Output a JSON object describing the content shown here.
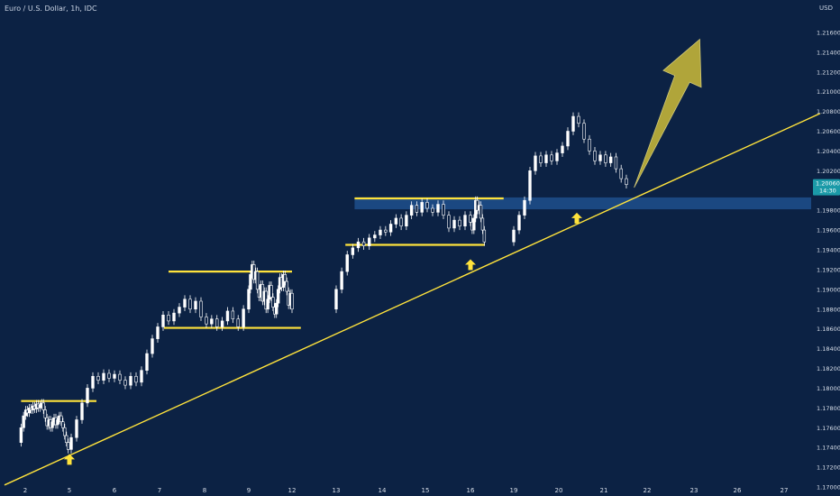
{
  "header": {
    "symbol_title": "Euro / U.S. Dollar, 1h, IDC",
    "currency": "USD"
  },
  "colors": {
    "background": "#0c2244",
    "candle": "#ffffff",
    "trendline": "#ffe33c",
    "levels": "#ffe33c",
    "zone": "#1f4f8c",
    "arrow_fill": "#b9ad3a",
    "badge": "#1b9aa8"
  },
  "chart_data": {
    "type": "candlestick",
    "title": "Euro / U.S. Dollar, 1h, IDC",
    "currency": "USD",
    "ylim": [
      1.17,
      1.218
    ],
    "y_ticks": [
      "1.21600",
      "1.21400",
      "1.21200",
      "1.21000",
      "1.20800",
      "1.20600",
      "1.20400",
      "1.20200",
      "1.20000",
      "1.19800",
      "1.19600",
      "1.19400",
      "1.19200",
      "1.19000",
      "1.18800",
      "1.18600",
      "1.18400",
      "1.18200",
      "1.18000",
      "1.17800",
      "1.17600",
      "1.17400",
      "1.17200",
      "1.17000"
    ],
    "x_ticks": [
      {
        "day": 2,
        "label": "2"
      },
      {
        "day": 5,
        "label": "5"
      },
      {
        "day": 6,
        "label": "6"
      },
      {
        "day": 7,
        "label": "7"
      },
      {
        "day": 8,
        "label": "8"
      },
      {
        "day": 9,
        "label": "9"
      },
      {
        "day": 12,
        "label": "12"
      },
      {
        "day": 13,
        "label": "13"
      },
      {
        "day": 14,
        "label": "14"
      },
      {
        "day": 15,
        "label": "15"
      },
      {
        "day": 16,
        "label": "16"
      },
      {
        "day": 19,
        "label": "19"
      },
      {
        "day": 20,
        "label": "20"
      },
      {
        "day": 21,
        "label": "21"
      },
      {
        "day": 22,
        "label": "22"
      },
      {
        "day": 23,
        "label": "23"
      },
      {
        "day": 26,
        "label": "26"
      },
      {
        "day": 27,
        "label": "27"
      }
    ],
    "last_price": {
      "value": 1.2006,
      "label": "1.20060",
      "countdown": "14:30"
    },
    "series": [
      {
        "day": 1.8,
        "o": 1.1745,
        "c": 1.176
      },
      {
        "day": 1.92,
        "o": 1.176,
        "c": 1.1772
      },
      {
        "day": 2.04,
        "o": 1.1772,
        "c": 1.1778
      },
      {
        "day": 2.16,
        "o": 1.1778,
        "c": 1.1775
      },
      {
        "day": 2.28,
        "o": 1.1775,
        "c": 1.178
      },
      {
        "day": 2.4,
        "o": 1.178,
        "c": 1.1778
      },
      {
        "day": 2.52,
        "o": 1.1778,
        "c": 1.1782
      },
      {
        "day": 2.64,
        "o": 1.1782,
        "c": 1.1779
      },
      {
        "day": 2.76,
        "o": 1.1779,
        "c": 1.1784
      },
      {
        "day": 2.88,
        "o": 1.1784,
        "c": 1.178
      },
      {
        "day": 3.0,
        "o": 1.178,
        "c": 1.1783
      },
      {
        "day": 3.12,
        "o": 1.1783,
        "c": 1.1785
      },
      {
        "day": 3.24,
        "o": 1.1785,
        "c": 1.1778
      },
      {
        "day": 3.36,
        "o": 1.1778,
        "c": 1.177
      },
      {
        "day": 3.48,
        "o": 1.177,
        "c": 1.1762
      },
      {
        "day": 3.6,
        "o": 1.1762,
        "c": 1.1768
      },
      {
        "day": 3.72,
        "o": 1.1768,
        "c": 1.176
      },
      {
        "day": 3.84,
        "o": 1.176,
        "c": 1.1766
      },
      {
        "day": 3.96,
        "o": 1.1766,
        "c": 1.177
      },
      {
        "day": 4.08,
        "o": 1.177,
        "c": 1.1763
      },
      {
        "day": 4.2,
        "o": 1.1763,
        "c": 1.1768
      },
      {
        "day": 4.32,
        "o": 1.1768,
        "c": 1.1772
      },
      {
        "day": 4.44,
        "o": 1.1772,
        "c": 1.1766
      },
      {
        "day": 4.56,
        "o": 1.1766,
        "c": 1.176
      },
      {
        "day": 4.68,
        "o": 1.176,
        "c": 1.1752
      },
      {
        "day": 4.8,
        "o": 1.1752,
        "c": 1.1745
      },
      {
        "day": 4.92,
        "o": 1.1745,
        "c": 1.1738
      },
      {
        "day": 5.04,
        "o": 1.1738,
        "c": 1.175
      },
      {
        "day": 5.16,
        "o": 1.175,
        "c": 1.1768
      },
      {
        "day": 5.28,
        "o": 1.1768,
        "c": 1.1785
      },
      {
        "day": 5.4,
        "o": 1.1785,
        "c": 1.18
      },
      {
        "day": 5.52,
        "o": 1.18,
        "c": 1.1812
      },
      {
        "day": 5.64,
        "o": 1.1812,
        "c": 1.1808
      },
      {
        "day": 5.76,
        "o": 1.1808,
        "c": 1.1815
      },
      {
        "day": 5.88,
        "o": 1.1815,
        "c": 1.181
      },
      {
        "day": 6.0,
        "o": 1.181,
        "c": 1.1814
      },
      {
        "day": 6.12,
        "o": 1.1814,
        "c": 1.1808
      },
      {
        "day": 6.24,
        "o": 1.1808,
        "c": 1.1803
      },
      {
        "day": 6.36,
        "o": 1.1803,
        "c": 1.1812
      },
      {
        "day": 6.48,
        "o": 1.1812,
        "c": 1.1806
      },
      {
        "day": 6.6,
        "o": 1.1806,
        "c": 1.1818
      },
      {
        "day": 6.72,
        "o": 1.1818,
        "c": 1.1835
      },
      {
        "day": 6.84,
        "o": 1.1835,
        "c": 1.185
      },
      {
        "day": 6.96,
        "o": 1.185,
        "c": 1.1862
      },
      {
        "day": 7.08,
        "o": 1.1862,
        "c": 1.1874
      },
      {
        "day": 7.2,
        "o": 1.1874,
        "c": 1.1868
      },
      {
        "day": 7.32,
        "o": 1.1868,
        "c": 1.1876
      },
      {
        "day": 7.44,
        "o": 1.1876,
        "c": 1.1882
      },
      {
        "day": 7.56,
        "o": 1.1882,
        "c": 1.189
      },
      {
        "day": 7.68,
        "o": 1.189,
        "c": 1.188
      },
      {
        "day": 7.8,
        "o": 1.188,
        "c": 1.1888
      },
      {
        "day": 7.92,
        "o": 1.1888,
        "c": 1.1872
      },
      {
        "day": 8.04,
        "o": 1.1872,
        "c": 1.1865
      },
      {
        "day": 8.16,
        "o": 1.1865,
        "c": 1.187
      },
      {
        "day": 8.28,
        "o": 1.187,
        "c": 1.1862
      },
      {
        "day": 8.4,
        "o": 1.1862,
        "c": 1.1868
      },
      {
        "day": 8.52,
        "o": 1.1868,
        "c": 1.1878
      },
      {
        "day": 8.64,
        "o": 1.1878,
        "c": 1.187
      },
      {
        "day": 8.76,
        "o": 1.187,
        "c": 1.1862
      },
      {
        "day": 8.88,
        "o": 1.1862,
        "c": 1.188
      },
      {
        "day": 9.0,
        "o": 1.188,
        "c": 1.19
      },
      {
        "day": 9.12,
        "o": 1.19,
        "c": 1.1915
      },
      {
        "day": 9.24,
        "o": 1.1915,
        "c": 1.1925
      },
      {
        "day": 9.36,
        "o": 1.1925,
        "c": 1.191
      },
      {
        "day": 9.48,
        "o": 1.191,
        "c": 1.1918
      },
      {
        "day": 9.6,
        "o": 1.1918,
        "c": 1.19
      },
      {
        "day": 9.72,
        "o": 1.19,
        "c": 1.1892
      },
      {
        "day": 9.84,
        "o": 1.1892,
        "c": 1.1905
      },
      {
        "day": 9.96,
        "o": 1.1905,
        "c": 1.1888
      },
      {
        "day": 10.08,
        "o": 1.1888,
        "c": 1.1898
      },
      {
        "day": 10.2,
        "o": 1.1898,
        "c": 1.188
      },
      {
        "day": 10.32,
        "o": 1.188,
        "c": 1.189
      },
      {
        "day": 10.44,
        "o": 1.189,
        "c": 1.1904
      },
      {
        "day": 10.56,
        "o": 1.1904,
        "c": 1.1892
      },
      {
        "day": 10.68,
        "o": 1.1892,
        "c": 1.1882
      },
      {
        "day": 10.8,
        "o": 1.1882,
        "c": 1.1875
      },
      {
        "day": 10.92,
        "o": 1.1875,
        "c": 1.1886
      },
      {
        "day": 11.04,
        "o": 1.1886,
        "c": 1.19
      },
      {
        "day": 11.16,
        "o": 1.19,
        "c": 1.1912
      },
      {
        "day": 11.28,
        "o": 1.1912,
        "c": 1.1902
      },
      {
        "day": 11.4,
        "o": 1.1902,
        "c": 1.1915
      },
      {
        "day": 11.52,
        "o": 1.1915,
        "c": 1.1908
      },
      {
        "day": 11.64,
        "o": 1.1908,
        "c": 1.1898
      },
      {
        "day": 11.76,
        "o": 1.1898,
        "c": 1.1884
      },
      {
        "day": 11.88,
        "o": 1.1884,
        "c": 1.1896
      },
      {
        "day": 12.0,
        "o": 1.1896,
        "c": 1.188
      },
      {
        "day": 13.0,
        "o": 1.188,
        "c": 1.19
      },
      {
        "day": 13.12,
        "o": 1.19,
        "c": 1.1918
      },
      {
        "day": 13.24,
        "o": 1.1918,
        "c": 1.1935
      },
      {
        "day": 13.36,
        "o": 1.1935,
        "c": 1.1942
      },
      {
        "day": 13.48,
        "o": 1.1942,
        "c": 1.1948
      },
      {
        "day": 13.6,
        "o": 1.1948,
        "c": 1.1944
      },
      {
        "day": 13.72,
        "o": 1.1944,
        "c": 1.1952
      },
      {
        "day": 13.84,
        "o": 1.1952,
        "c": 1.1955
      },
      {
        "day": 13.96,
        "o": 1.1955,
        "c": 1.196
      },
      {
        "day": 14.08,
        "o": 1.196,
        "c": 1.1958
      },
      {
        "day": 14.2,
        "o": 1.1958,
        "c": 1.1966
      },
      {
        "day": 14.32,
        "o": 1.1966,
        "c": 1.1972
      },
      {
        "day": 14.44,
        "o": 1.1972,
        "c": 1.1964
      },
      {
        "day": 14.56,
        "o": 1.1964,
        "c": 1.1975
      },
      {
        "day": 14.68,
        "o": 1.1975,
        "c": 1.1985
      },
      {
        "day": 14.8,
        "o": 1.1985,
        "c": 1.1978
      },
      {
        "day": 14.92,
        "o": 1.1978,
        "c": 1.1988
      },
      {
        "day": 15.04,
        "o": 1.1988,
        "c": 1.1982
      },
      {
        "day": 15.16,
        "o": 1.1982,
        "c": 1.1978
      },
      {
        "day": 15.28,
        "o": 1.1978,
        "c": 1.1986
      },
      {
        "day": 15.4,
        "o": 1.1986,
        "c": 1.1975
      },
      {
        "day": 15.52,
        "o": 1.1975,
        "c": 1.1962
      },
      {
        "day": 15.64,
        "o": 1.1962,
        "c": 1.197
      },
      {
        "day": 15.76,
        "o": 1.197,
        "c": 1.1964
      },
      {
        "day": 15.88,
        "o": 1.1964,
        "c": 1.1975
      },
      {
        "day": 16.0,
        "o": 1.1975,
        "c": 1.1968
      },
      {
        "day": 16.12,
        "o": 1.1968,
        "c": 1.196
      },
      {
        "day": 16.24,
        "o": 1.196,
        "c": 1.1972
      },
      {
        "day": 16.36,
        "o": 1.1972,
        "c": 1.199
      },
      {
        "day": 16.48,
        "o": 1.199,
        "c": 1.198
      },
      {
        "day": 16.6,
        "o": 1.198,
        "c": 1.1985
      },
      {
        "day": 16.72,
        "o": 1.1985,
        "c": 1.1972
      },
      {
        "day": 16.84,
        "o": 1.1972,
        "c": 1.196
      },
      {
        "day": 16.96,
        "o": 1.196,
        "c": 1.1948
      },
      {
        "day": 19.0,
        "o": 1.1948,
        "c": 1.196
      },
      {
        "day": 19.12,
        "o": 1.196,
        "c": 1.1975
      },
      {
        "day": 19.24,
        "o": 1.1975,
        "c": 1.199
      },
      {
        "day": 19.36,
        "o": 1.199,
        "c": 1.202
      },
      {
        "day": 19.48,
        "o": 1.202,
        "c": 1.2035
      },
      {
        "day": 19.6,
        "o": 1.2035,
        "c": 1.2028
      },
      {
        "day": 19.72,
        "o": 1.2028,
        "c": 1.2036
      },
      {
        "day": 19.84,
        "o": 1.2036,
        "c": 1.203
      },
      {
        "day": 19.96,
        "o": 1.203,
        "c": 1.2038
      },
      {
        "day": 20.08,
        "o": 1.2038,
        "c": 1.2045
      },
      {
        "day": 20.2,
        "o": 1.2045,
        "c": 1.206
      },
      {
        "day": 20.32,
        "o": 1.206,
        "c": 1.2075
      },
      {
        "day": 20.44,
        "o": 1.2075,
        "c": 1.2068
      },
      {
        "day": 20.56,
        "o": 1.2068,
        "c": 1.2052
      },
      {
        "day": 20.68,
        "o": 1.2052,
        "c": 1.204
      },
      {
        "day": 20.8,
        "o": 1.204,
        "c": 1.203
      },
      {
        "day": 20.92,
        "o": 1.203,
        "c": 1.2036
      },
      {
        "day": 21.04,
        "o": 1.2036,
        "c": 1.2028
      },
      {
        "day": 21.16,
        "o": 1.2028,
        "c": 1.2034
      },
      {
        "day": 21.28,
        "o": 1.2034,
        "c": 1.2022
      },
      {
        "day": 21.4,
        "o": 1.2022,
        "c": 1.2012
      },
      {
        "day": 21.52,
        "o": 1.2012,
        "c": 1.2006
      }
    ],
    "annotations": {
      "trendline": {
        "from": {
          "day": 0.9,
          "price": 1.1702
        },
        "to": {
          "day": 29.5,
          "price": 1.2078
        }
      },
      "levels": [
        {
          "from_day": 1.8,
          "to_day": 5.6,
          "price": 1.1787
        },
        {
          "from_day": 7.1,
          "to_day": 12.2,
          "price": 1.1861
        },
        {
          "from_day": 7.2,
          "to_day": 12.0,
          "price": 1.1918
        },
        {
          "from_day": 13.2,
          "to_day": 17.0,
          "price": 1.1945
        },
        {
          "from_day": 13.4,
          "to_day": 18.3,
          "price": 1.1992
        }
      ],
      "zone": {
        "from_day": 13.4,
        "price_low": 1.1981,
        "price_high": 1.1993
      },
      "markers_up": [
        {
          "day": 5.0,
          "price": 1.1728
        },
        {
          "day": 16.0,
          "price": 1.1925
        },
        {
          "day": 20.4,
          "price": 1.1972
        }
      ],
      "projection_arrow": {
        "from": {
          "day": 21.7,
          "price": 1.2003
        },
        "to": {
          "day": 23.4,
          "price": 1.2153
        }
      }
    }
  }
}
